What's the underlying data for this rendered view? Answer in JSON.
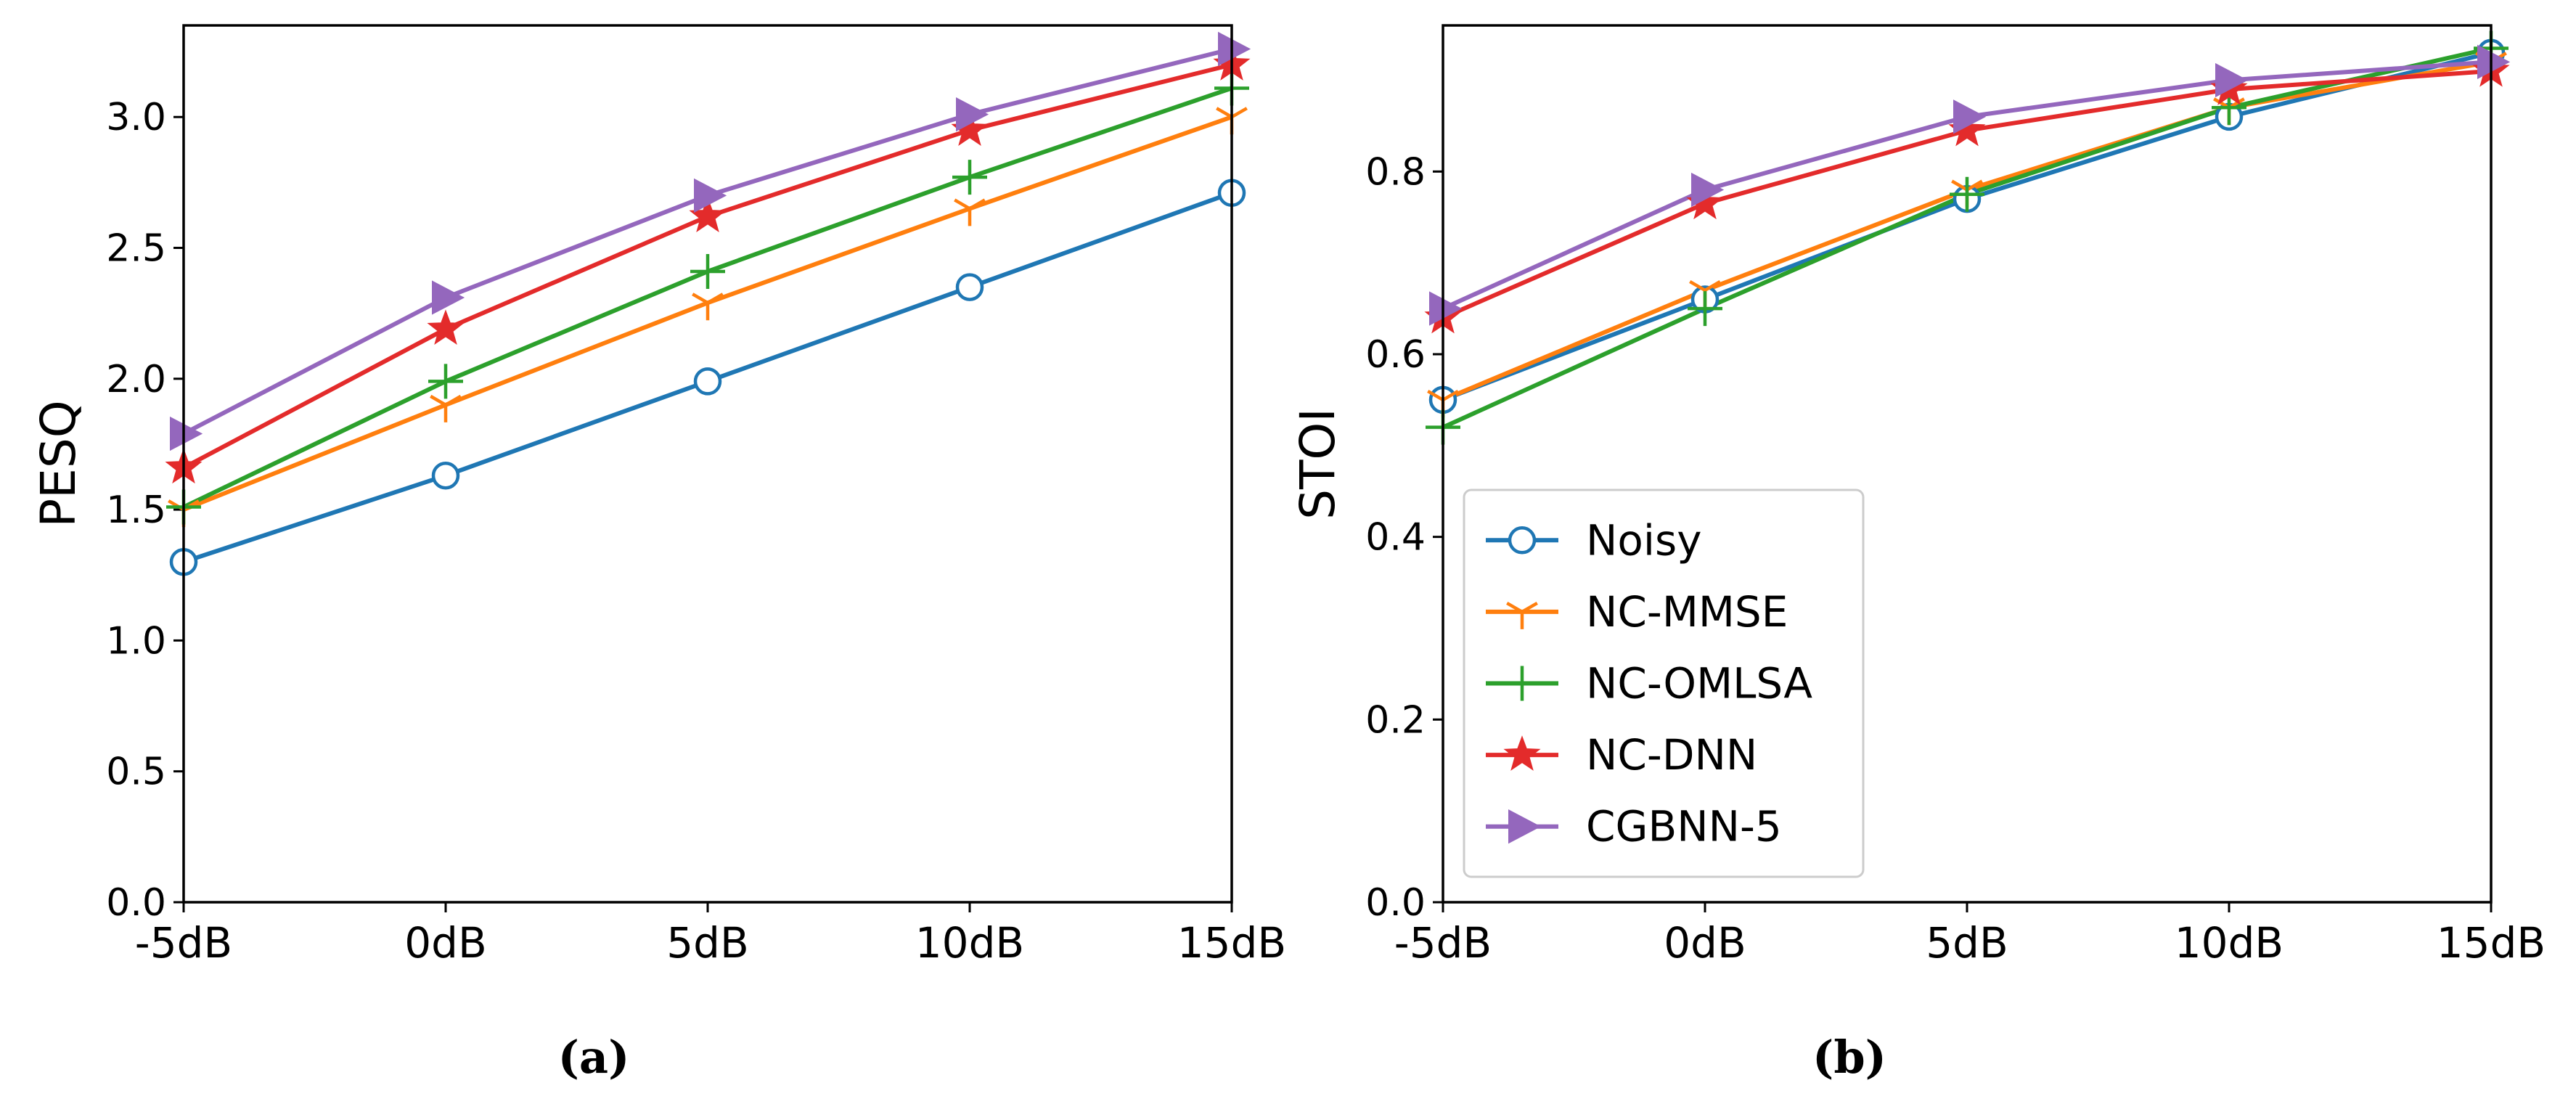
{
  "chart_data": [
    {
      "type": "line",
      "panel": "(a)",
      "categories": [
        "-5dB",
        "0dB",
        "5dB",
        "10dB",
        "15dB"
      ],
      "ylabel": "PESQ",
      "xlabel": "",
      "ylim": [
        0,
        3.35
      ],
      "yticks": [
        "0.0",
        "0.5",
        "1.0",
        "1.5",
        "2.0",
        "2.5",
        "3.0"
      ],
      "series": [
        {
          "name": "Noisy",
          "color": "#1f77b4",
          "marker": "circle",
          "values": [
            1.3,
            1.63,
            1.99,
            2.35,
            2.71
          ]
        },
        {
          "name": "NC-MMSE",
          "color": "#ff7f0e",
          "marker": "tri",
          "values": [
            1.5,
            1.9,
            2.29,
            2.65,
            3.0
          ]
        },
        {
          "name": "NC-OMLSA",
          "color": "#2ca02c",
          "marker": "plus",
          "values": [
            1.51,
            1.99,
            2.41,
            2.77,
            3.11
          ]
        },
        {
          "name": "NC-DNN",
          "color": "#e32b2b",
          "marker": "star",
          "values": [
            1.66,
            2.19,
            2.62,
            2.95,
            3.2
          ]
        },
        {
          "name": "CGBNN-5",
          "color": "#9467bd",
          "marker": "triangle-right",
          "values": [
            1.79,
            2.31,
            2.7,
            3.01,
            3.26
          ]
        }
      ]
    },
    {
      "type": "line",
      "panel": "(b)",
      "categories": [
        "-5dB",
        "0dB",
        "5dB",
        "10dB",
        "15dB"
      ],
      "ylabel": "STOI",
      "xlabel": "",
      "ylim": [
        0,
        0.96
      ],
      "yticks": [
        "0.0",
        "0.2",
        "0.4",
        "0.6",
        "0.8"
      ],
      "legend_position": "lower-left",
      "series": [
        {
          "name": "Noisy",
          "color": "#1f77b4",
          "marker": "circle",
          "values": [
            0.55,
            0.66,
            0.77,
            0.86,
            0.93
          ]
        },
        {
          "name": "NC-MMSE",
          "color": "#ff7f0e",
          "marker": "tri",
          "values": [
            0.55,
            0.67,
            0.78,
            0.87,
            0.92
          ]
        },
        {
          "name": "NC-OMLSA",
          "color": "#2ca02c",
          "marker": "plus",
          "values": [
            0.52,
            0.65,
            0.775,
            0.87,
            0.935
          ]
        },
        {
          "name": "NC-DNN",
          "color": "#e32b2b",
          "marker": "star",
          "values": [
            0.64,
            0.765,
            0.845,
            0.89,
            0.91
          ]
        },
        {
          "name": "CGBNN-5",
          "color": "#9467bd",
          "marker": "triangle-right",
          "values": [
            0.65,
            0.78,
            0.86,
            0.9,
            0.92
          ]
        }
      ]
    }
  ]
}
